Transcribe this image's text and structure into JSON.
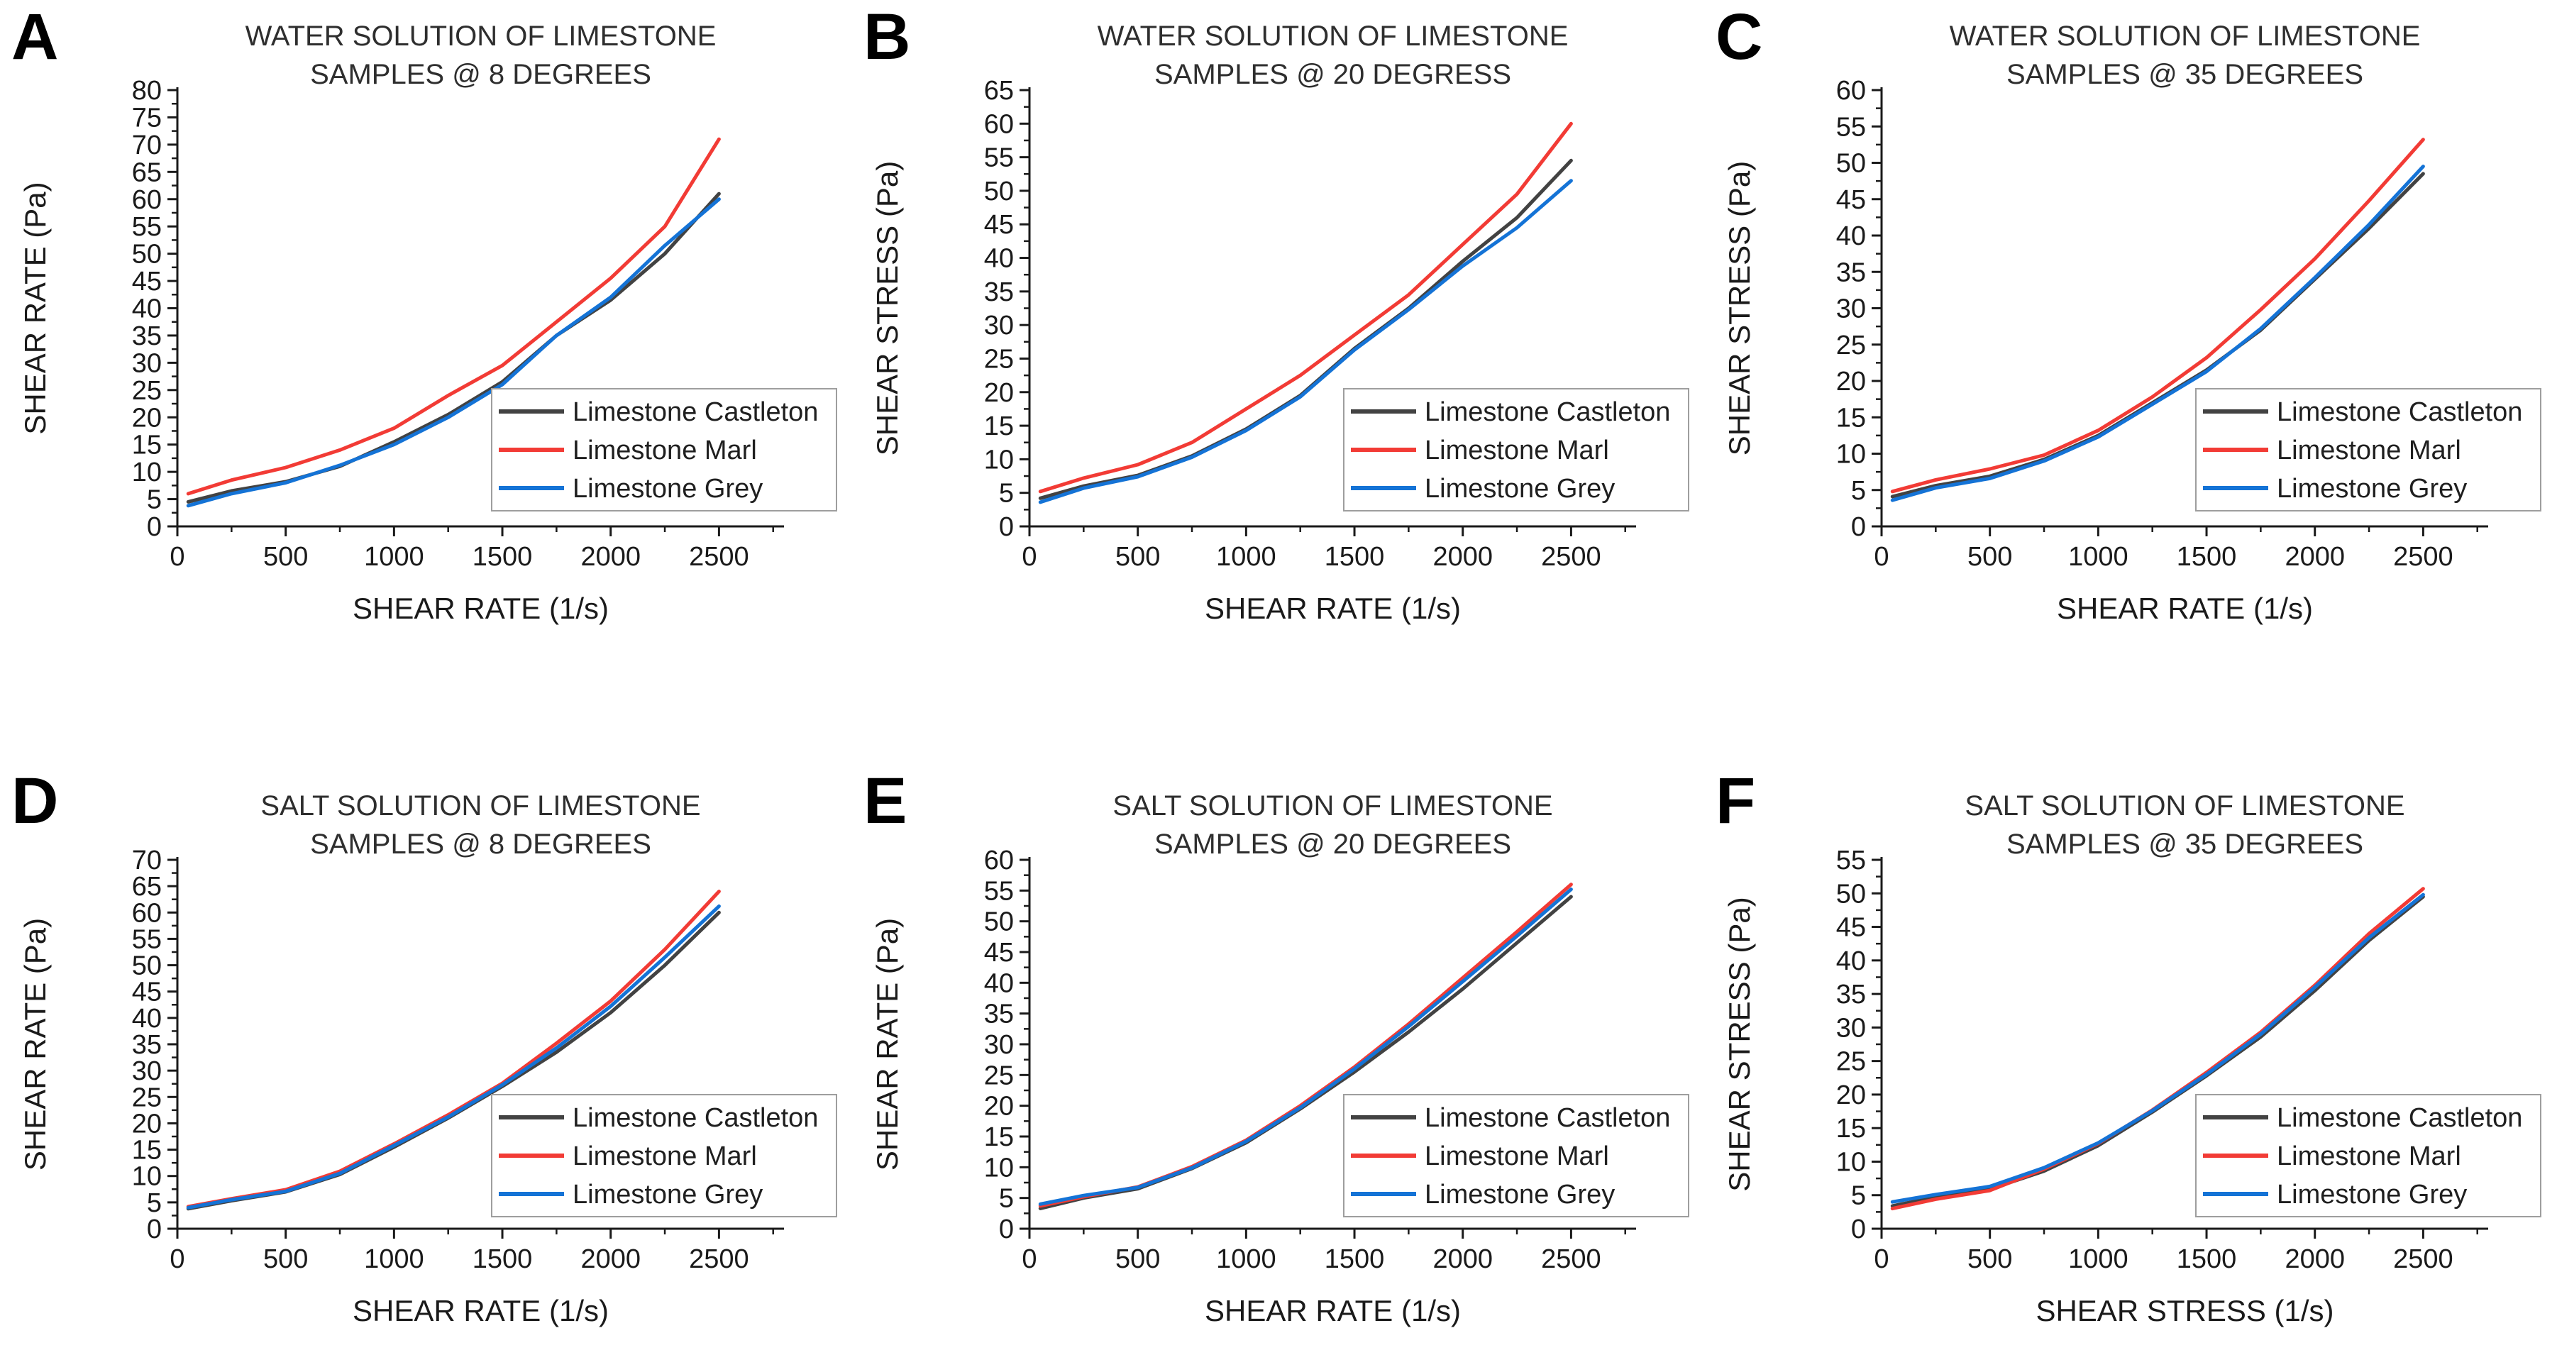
{
  "figure": {
    "background": "#ffffff",
    "series_colors": {
      "castleton": "#424242",
      "marl": "#f23b35",
      "grey": "#1473d6"
    },
    "axis_color": "#1a1a1a",
    "title_color": "#2e2e2e",
    "legend_border_color": "#9e9e9e"
  },
  "chart_data": [
    {
      "panel_label": "A",
      "type": "line",
      "title_lines": [
        "WATER SOLUTION OF LIMESTONE",
        "SAMPLES @ 8 DEGREES"
      ],
      "xlabel": "SHEAR RATE (1/s)",
      "ylabel": "SHEAR RATE (Pa)",
      "xlim": [
        0,
        2800
      ],
      "ylim": [
        0,
        80
      ],
      "ytick_step": 5,
      "xticks": [
        0,
        500,
        1000,
        1500,
        2000,
        2500
      ],
      "grid": false,
      "legend_position": "lower-right",
      "x": [
        50,
        250,
        500,
        750,
        1000,
        1250,
        1500,
        1750,
        2000,
        2250,
        2500
      ],
      "series": [
        {
          "name": "Limestone Castleton",
          "color_key": "castleton",
          "values": [
            4.5,
            6.5,
            8.2,
            11,
            15.5,
            20.5,
            26.5,
            35,
            41.5,
            50,
            61
          ]
        },
        {
          "name": "Limestone Marl",
          "color_key": "marl",
          "values": [
            6,
            8.5,
            10.8,
            14,
            18,
            24,
            29.5,
            37.5,
            45.5,
            55,
            71
          ]
        },
        {
          "name": "Limestone Grey",
          "color_key": "grey",
          "values": [
            3.8,
            6,
            8,
            11.2,
            15,
            20,
            26,
            35,
            42,
            51.5,
            60
          ]
        }
      ]
    },
    {
      "panel_label": "B",
      "type": "line",
      "title_lines": [
        "WATER SOLUTION OF LIMESTONE",
        "SAMPLES @ 20 DEGRESS"
      ],
      "xlabel": "SHEAR RATE (1/s)",
      "ylabel": "SHEAR STRESS (Pa)",
      "xlim": [
        0,
        2800
      ],
      "ylim": [
        0,
        65
      ],
      "ytick_step": 5,
      "xticks": [
        0,
        500,
        1000,
        1500,
        2000,
        2500
      ],
      "grid": false,
      "legend_position": "lower-right",
      "x": [
        50,
        250,
        500,
        750,
        1000,
        1250,
        1500,
        1750,
        2000,
        2250,
        2500
      ],
      "series": [
        {
          "name": "Limestone Castleton",
          "color_key": "castleton",
          "values": [
            4.2,
            6,
            7.6,
            10.5,
            14.5,
            19.5,
            26.5,
            32.5,
            39.5,
            46,
            54.5
          ]
        },
        {
          "name": "Limestone Marl",
          "color_key": "marl",
          "values": [
            5.2,
            7.2,
            9.2,
            12.5,
            17.5,
            22.5,
            28.5,
            34.5,
            42,
            49.5,
            60
          ]
        },
        {
          "name": "Limestone Grey",
          "color_key": "grey",
          "values": [
            3.6,
            5.7,
            7.4,
            10.3,
            14.3,
            19.3,
            26.3,
            32.3,
            38.8,
            44.5,
            51.5
          ]
        }
      ]
    },
    {
      "panel_label": "C",
      "type": "line",
      "title_lines": [
        "WATER SOLUTION OF LIMESTONE",
        "SAMPLES @ 35 DEGREES"
      ],
      "xlabel": "SHEAR RATE (1/s)",
      "ylabel": "SHEAR STRESS (Pa)",
      "xlim": [
        0,
        2800
      ],
      "ylim": [
        0,
        60
      ],
      "ytick_step": 5,
      "xticks": [
        0,
        500,
        1000,
        1500,
        2000,
        2500
      ],
      "grid": false,
      "legend_position": "lower-right",
      "x": [
        50,
        250,
        500,
        750,
        1000,
        1250,
        1500,
        1750,
        2000,
        2250,
        2500
      ],
      "series": [
        {
          "name": "Limestone Castleton",
          "color_key": "castleton",
          "values": [
            4.1,
            5.6,
            6.9,
            9.2,
            12.5,
            17,
            21.5,
            27,
            34,
            41,
            48.5
          ]
        },
        {
          "name": "Limestone Marl",
          "color_key": "marl",
          "values": [
            4.8,
            6.4,
            7.9,
            9.8,
            13.2,
            17.8,
            23.2,
            29.8,
            36.8,
            44.8,
            53.2
          ]
        },
        {
          "name": "Limestone Grey",
          "color_key": "grey",
          "values": [
            3.6,
            5.3,
            6.6,
            9,
            12.3,
            16.8,
            21.3,
            27.2,
            34.2,
            41.5,
            49.5
          ]
        }
      ]
    },
    {
      "panel_label": "D",
      "type": "line",
      "title_lines": [
        "SALT SOLUTION OF LIMESTONE",
        "SAMPLES @ 8 DEGREES"
      ],
      "xlabel": "SHEAR RATE (1/s)",
      "ylabel": "SHEAR RATE (Pa)",
      "xlim": [
        0,
        2800
      ],
      "ylim": [
        0,
        70
      ],
      "ytick_step": 5,
      "xticks": [
        0,
        500,
        1000,
        1500,
        2000,
        2500
      ],
      "grid": false,
      "legend_position": "lower-right",
      "x": [
        50,
        250,
        500,
        750,
        1000,
        1250,
        1500,
        1750,
        2000,
        2250,
        2500
      ],
      "series": [
        {
          "name": "Limestone Castleton",
          "color_key": "castleton",
          "values": [
            3.8,
            5.3,
            7,
            10.3,
            15.5,
            21,
            27,
            33.5,
            41,
            50,
            60
          ]
        },
        {
          "name": "Limestone Marl",
          "color_key": "marl",
          "values": [
            4.2,
            5.7,
            7.4,
            10.9,
            16.1,
            21.6,
            27.6,
            35.2,
            43.2,
            53,
            64
          ]
        },
        {
          "name": "Limestone Grey",
          "color_key": "grey",
          "values": [
            4,
            5.5,
            7.1,
            10.5,
            15.8,
            21.2,
            27.3,
            34.3,
            42.2,
            51.5,
            61.2
          ]
        }
      ]
    },
    {
      "panel_label": "E",
      "type": "line",
      "title_lines": [
        "SALT SOLUTION OF LIMESTONE",
        "SAMPLES @ 20 DEGREES"
      ],
      "xlabel": "SHEAR RATE (1/s)",
      "ylabel": "SHEAR RATE (Pa)",
      "xlim": [
        0,
        2800
      ],
      "ylim": [
        0,
        60
      ],
      "ytick_step": 5,
      "xticks": [
        0,
        500,
        1000,
        1500,
        2000,
        2500
      ],
      "grid": false,
      "legend_position": "lower-right",
      "x": [
        50,
        250,
        500,
        750,
        1000,
        1250,
        1500,
        1750,
        2000,
        2250,
        2500
      ],
      "series": [
        {
          "name": "Limestone Castleton",
          "color_key": "castleton",
          "values": [
            3.3,
            5,
            6.5,
            9.8,
            14,
            19.5,
            25.5,
            32,
            39,
            46.5,
            54
          ]
        },
        {
          "name": "Limestone Marl",
          "color_key": "marl",
          "values": [
            3.7,
            5.2,
            6.8,
            10.1,
            14.4,
            20,
            26.3,
            33.3,
            40.8,
            48.3,
            56
          ]
        },
        {
          "name": "Limestone Grey",
          "color_key": "grey",
          "values": [
            4,
            5.4,
            6.7,
            9.9,
            14.2,
            19.7,
            26,
            32.9,
            40.2,
            47.6,
            55.2
          ]
        }
      ]
    },
    {
      "panel_label": "F",
      "type": "line",
      "title_lines": [
        "SALT SOLUTION OF LIMESTONE",
        "SAMPLES @ 35 DEGREES"
      ],
      "xlabel": "SHEAR STRESS (1/s)",
      "ylabel": "SHEAR STRESS (Pa)",
      "xlim": [
        0,
        2800
      ],
      "ylim": [
        0,
        55
      ],
      "ytick_step": 5,
      "xticks": [
        0,
        500,
        1000,
        1500,
        2000,
        2500
      ],
      "grid": false,
      "legend_position": "lower-right",
      "x": [
        50,
        250,
        500,
        750,
        1000,
        1250,
        1500,
        1750,
        2000,
        2250,
        2500
      ],
      "series": [
        {
          "name": "Limestone Castleton",
          "color_key": "castleton",
          "values": [
            3.4,
            4.7,
            5.9,
            8.6,
            12.4,
            17.4,
            22.8,
            28.6,
            35.5,
            43,
            49.5
          ]
        },
        {
          "name": "Limestone Marl",
          "color_key": "marl",
          "values": [
            3,
            4.4,
            5.7,
            8.9,
            12.7,
            17.7,
            23.3,
            29.3,
            36.3,
            44,
            50.7
          ]
        },
        {
          "name": "Limestone Grey",
          "color_key": "grey",
          "values": [
            4,
            5.1,
            6.3,
            9.1,
            12.8,
            17.6,
            23,
            29,
            36,
            43.4,
            49.8
          ]
        }
      ]
    }
  ]
}
